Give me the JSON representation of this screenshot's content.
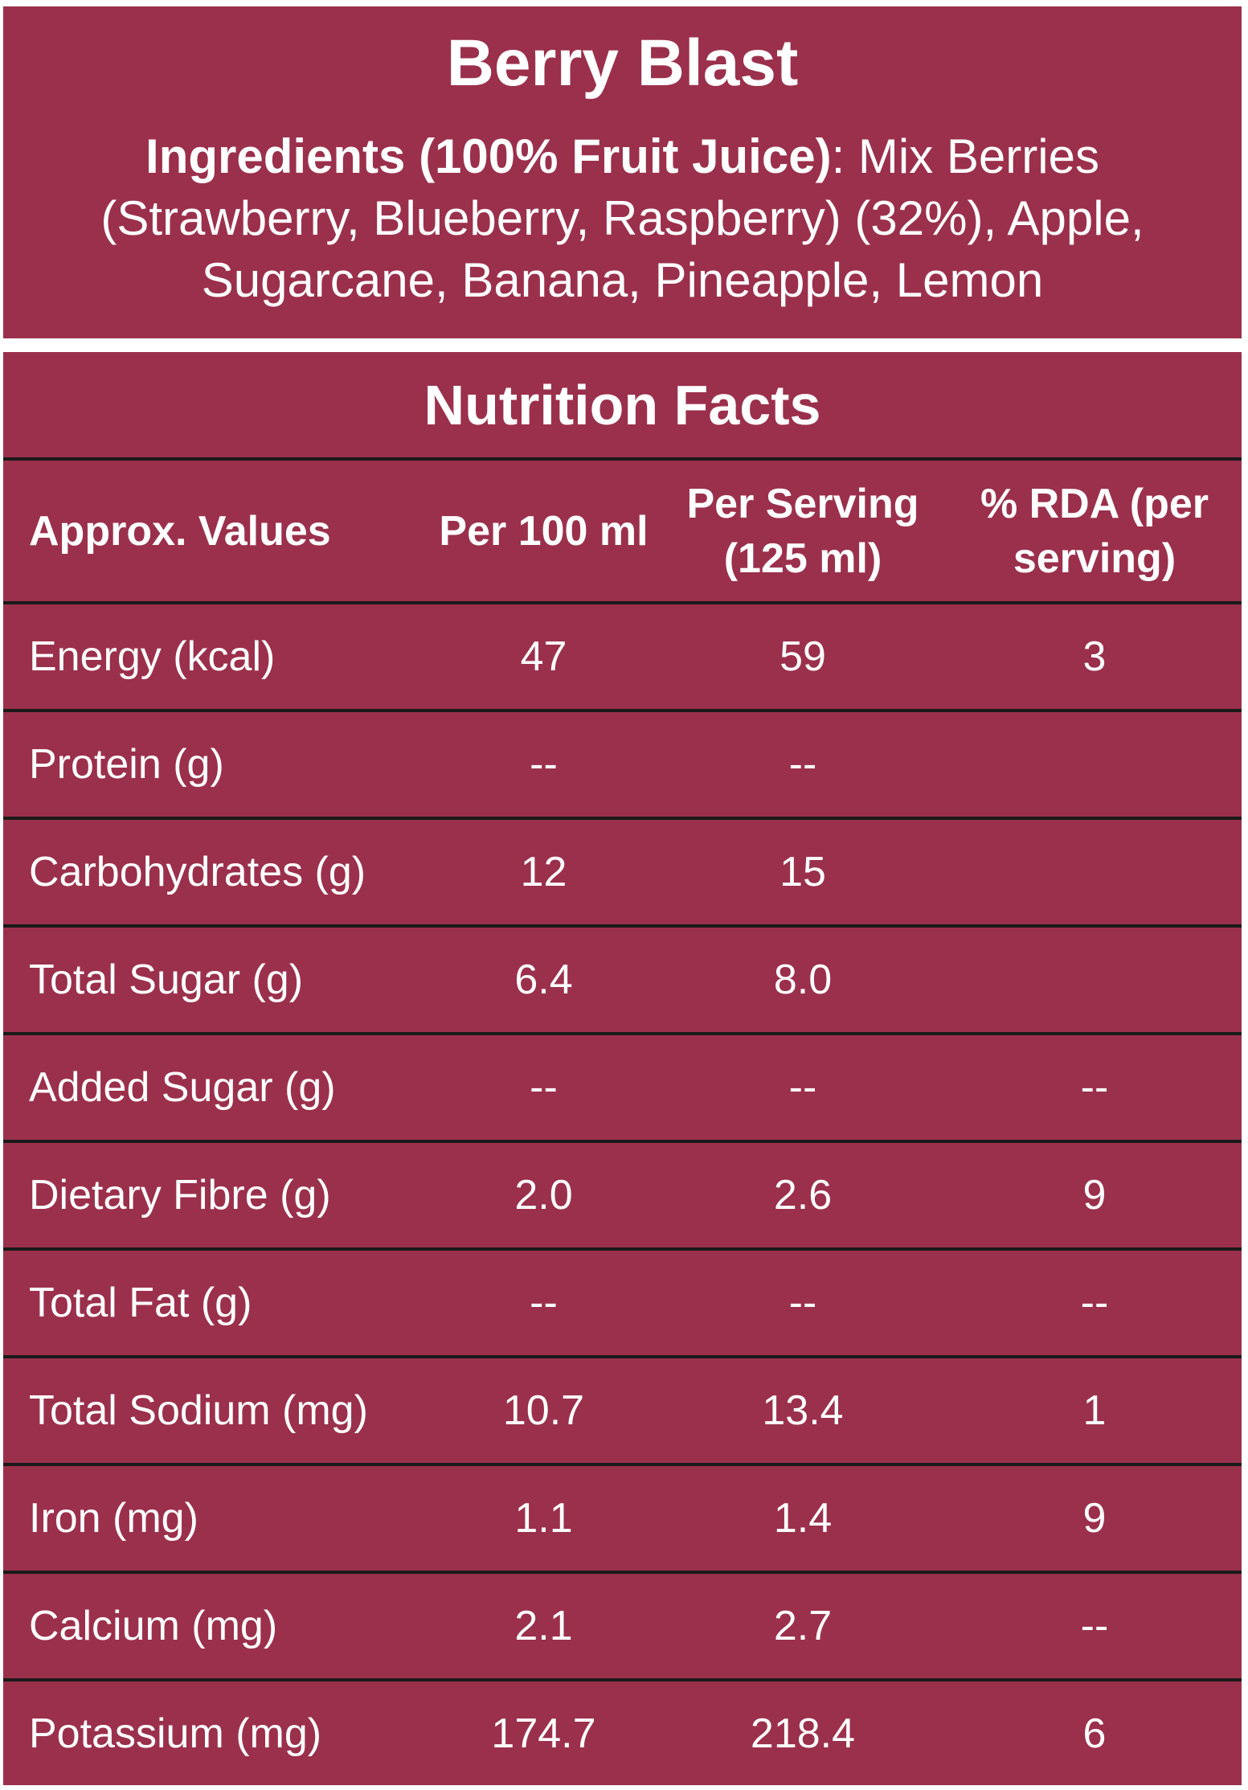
{
  "product": {
    "name": "Berry Blast",
    "ingredients_label": "Ingredients (100% Fruit Juice)",
    "ingredients_list": ": Mix Berries (Strawberry, Blueberry, Raspberry) (32%), Apple, Sugarcane, Banana, Pineapple, Lemon"
  },
  "nutrition": {
    "title": "Nutrition Facts",
    "headers": [
      "Approx. Values",
      "Per 100 ml",
      "Per Serving (125 ml)",
      "% RDA (per serving)"
    ],
    "rows": [
      {
        "nutrient": "Energy (kcal)",
        "per100": "47",
        "perServing": "59",
        "rda": "3"
      },
      {
        "nutrient": "Protein (g)",
        "per100": "--",
        "perServing": "--",
        "rda": ""
      },
      {
        "nutrient": "Carbohydrates (g)",
        "per100": "12",
        "perServing": "15",
        "rda": ""
      },
      {
        "nutrient": "Total Sugar (g)",
        "per100": "6.4",
        "perServing": "8.0",
        "rda": ""
      },
      {
        "nutrient": "Added Sugar (g)",
        "per100": "--",
        "perServing": "--",
        "rda": "--"
      },
      {
        "nutrient": "Dietary Fibre (g)",
        "per100": "2.0",
        "perServing": "2.6",
        "rda": "9"
      },
      {
        "nutrient": "Total Fat (g)",
        "per100": "--",
        "perServing": "--",
        "rda": "--"
      },
      {
        "nutrient": "Total Sodium (mg)",
        "per100": "10.7",
        "perServing": "13.4",
        "rda": "1"
      },
      {
        "nutrient": "Iron (mg)",
        "per100": "1.1",
        "perServing": "1.4",
        "rda": "9"
      },
      {
        "nutrient": "Calcium (mg)",
        "per100": "2.1",
        "perServing": "2.7",
        "rda": "--"
      },
      {
        "nutrient": "Potassium (mg)",
        "per100": "174.7",
        "perServing": "218.4",
        "rda": "6"
      }
    ]
  }
}
